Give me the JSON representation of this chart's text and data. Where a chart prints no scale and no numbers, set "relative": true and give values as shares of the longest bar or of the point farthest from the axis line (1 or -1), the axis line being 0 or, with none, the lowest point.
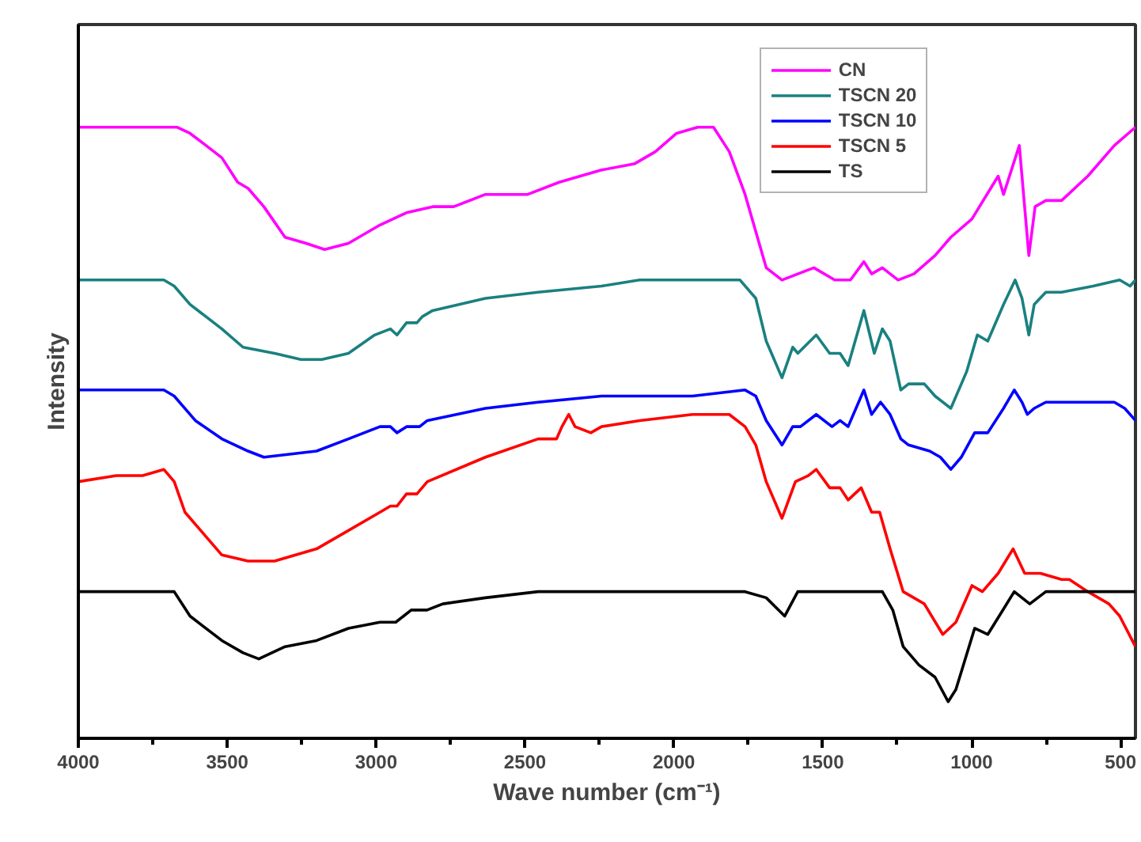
{
  "chart_data": {
    "type": "line",
    "xlabel": "Wave number (cm⁻¹)",
    "ylabel": "Intensity",
    "relative": true,
    "xlim": [
      4000,
      450
    ],
    "xticks": [
      4000,
      3500,
      3000,
      2500,
      2000,
      1500,
      1000,
      500
    ],
    "tick_labels": "x",
    "legend": "top right",
    "grid": false,
    "line_style": "solid",
    "marker": "none",
    "series": [
      {
        "name": "CN",
        "color": "#ff00ff",
        "x": [
          4000,
          3872,
          3669,
          3625,
          3571,
          3518,
          3465,
          3430,
          3377,
          3306,
          3235,
          3173,
          3093,
          2987,
          2898,
          2810,
          2739,
          2633,
          2491,
          2385,
          2314,
          2243,
          2133,
          2062,
          1991,
          1920,
          1867,
          1814,
          1761,
          1690,
          1637,
          1584,
          1530,
          1460,
          1407,
          1362,
          1336,
          1300,
          1247,
          1194,
          1123,
          1070,
          999,
          911,
          893,
          840,
          808,
          787,
          751,
          698,
          610,
          521,
          450
        ],
        "values": [
          1.0,
          1.0,
          1.0,
          0.99,
          0.97,
          0.95,
          0.91,
          0.9,
          0.87,
          0.82,
          0.81,
          0.8,
          0.81,
          0.84,
          0.86,
          0.87,
          0.87,
          0.89,
          0.89,
          0.91,
          0.92,
          0.93,
          0.94,
          0.96,
          0.99,
          1.0,
          1.0,
          0.96,
          0.89,
          0.77,
          0.75,
          0.76,
          0.77,
          0.75,
          0.75,
          0.78,
          0.76,
          0.77,
          0.75,
          0.76,
          0.79,
          0.82,
          0.85,
          0.92,
          0.89,
          0.97,
          0.79,
          0.87,
          0.88,
          0.88,
          0.92,
          0.97,
          1.0
        ]
      },
      {
        "name": "TSCN 20",
        "color": "#1a8080",
        "x": [
          4000,
          3713,
          3678,
          3625,
          3518,
          3447,
          3341,
          3253,
          3182,
          3093,
          3005,
          2952,
          2930,
          2898,
          2863,
          2845,
          2810,
          2633,
          2456,
          2243,
          2115,
          1938,
          1778,
          1725,
          1690,
          1637,
          1601,
          1584,
          1522,
          1477,
          1442,
          1415,
          1362,
          1327,
          1300,
          1274,
          1238,
          1212,
          1159,
          1123,
          1070,
          1017,
          981,
          946,
          893,
          854,
          831,
          808,
          790,
          751,
          698,
          592,
          503,
          468,
          450
        ],
        "values": [
          0.75,
          0.75,
          0.74,
          0.71,
          0.67,
          0.64,
          0.63,
          0.62,
          0.62,
          0.63,
          0.66,
          0.67,
          0.66,
          0.68,
          0.68,
          0.69,
          0.7,
          0.72,
          0.73,
          0.74,
          0.75,
          0.75,
          0.75,
          0.72,
          0.65,
          0.59,
          0.64,
          0.63,
          0.66,
          0.63,
          0.63,
          0.61,
          0.7,
          0.63,
          0.67,
          0.65,
          0.57,
          0.58,
          0.58,
          0.56,
          0.54,
          0.6,
          0.66,
          0.65,
          0.71,
          0.75,
          0.72,
          0.66,
          0.71,
          0.73,
          0.73,
          0.74,
          0.75,
          0.74,
          0.75
        ]
      },
      {
        "name": "TSCN 10",
        "color": "#0000ff",
        "x": [
          4000,
          3713,
          3678,
          3607,
          3518,
          3430,
          3377,
          3200,
          3093,
          2987,
          2952,
          2930,
          2898,
          2854,
          2828,
          2633,
          2456,
          2243,
          1938,
          1761,
          1725,
          1690,
          1637,
          1601,
          1575,
          1522,
          1469,
          1442,
          1415,
          1362,
          1336,
          1306,
          1274,
          1238,
          1212,
          1141,
          1105,
          1070,
          1035,
          990,
          946,
          893,
          857,
          831,
          813,
          790,
          751,
          610,
          521,
          486,
          450
        ],
        "values": [
          0.57,
          0.57,
          0.56,
          0.52,
          0.49,
          0.47,
          0.46,
          0.47,
          0.49,
          0.51,
          0.51,
          0.5,
          0.51,
          0.51,
          0.52,
          0.54,
          0.55,
          0.56,
          0.56,
          0.57,
          0.56,
          0.52,
          0.48,
          0.51,
          0.51,
          0.53,
          0.51,
          0.52,
          0.51,
          0.57,
          0.53,
          0.55,
          0.53,
          0.49,
          0.48,
          0.47,
          0.46,
          0.44,
          0.46,
          0.5,
          0.5,
          0.54,
          0.57,
          0.55,
          0.53,
          0.54,
          0.55,
          0.55,
          0.55,
          0.54,
          0.52
        ]
      },
      {
        "name": "TSCN 5",
        "color": "#ff0000",
        "x": [
          4000,
          3872,
          3784,
          3713,
          3678,
          3642,
          3589,
          3518,
          3430,
          3341,
          3200,
          3093,
          2987,
          2952,
          2930,
          2898,
          2863,
          2828,
          2633,
          2456,
          2394,
          2376,
          2353,
          2332,
          2279,
          2243,
          2115,
          1938,
          1814,
          1761,
          1725,
          1690,
          1637,
          1592,
          1548,
          1522,
          1477,
          1442,
          1415,
          1371,
          1336,
          1309,
          1274,
          1230,
          1159,
          1097,
          1053,
          999,
          964,
          911,
          861,
          822,
          769,
          698,
          672,
          610,
          539,
          503,
          450
        ],
        "values": [
          0.42,
          0.43,
          0.43,
          0.44,
          0.42,
          0.37,
          0.34,
          0.3,
          0.29,
          0.29,
          0.31,
          0.34,
          0.37,
          0.38,
          0.38,
          0.4,
          0.4,
          0.42,
          0.46,
          0.49,
          0.49,
          0.51,
          0.53,
          0.51,
          0.5,
          0.51,
          0.52,
          0.53,
          0.53,
          0.51,
          0.48,
          0.42,
          0.36,
          0.42,
          0.43,
          0.44,
          0.41,
          0.41,
          0.39,
          0.41,
          0.37,
          0.37,
          0.31,
          0.24,
          0.22,
          0.17,
          0.19,
          0.25,
          0.24,
          0.27,
          0.31,
          0.27,
          0.27,
          0.26,
          0.26,
          0.24,
          0.22,
          0.2,
          0.15
        ]
      },
      {
        "name": "TS",
        "color": "#000000",
        "x": [
          4000,
          3713,
          3678,
          3625,
          3518,
          3447,
          3394,
          3306,
          3200,
          3093,
          2987,
          2934,
          2882,
          2829,
          2776,
          2633,
          2456,
          2243,
          1938,
          1761,
          1690,
          1628,
          1584,
          1505,
          1381,
          1300,
          1265,
          1230,
          1177,
          1123,
          1079,
          1053,
          990,
          946,
          857,
          805,
          751,
          663,
          557,
          503,
          468,
          450
        ],
        "values": [
          0.24,
          0.24,
          0.24,
          0.2,
          0.16,
          0.14,
          0.13,
          0.15,
          0.16,
          0.18,
          0.19,
          0.19,
          0.21,
          0.21,
          0.22,
          0.23,
          0.24,
          0.24,
          0.24,
          0.24,
          0.23,
          0.2,
          0.24,
          0.24,
          0.24,
          0.24,
          0.21,
          0.15,
          0.12,
          0.1,
          0.06,
          0.08,
          0.18,
          0.17,
          0.24,
          0.22,
          0.24,
          0.24,
          0.24,
          0.24,
          0.24,
          0.24
        ]
      }
    ]
  }
}
